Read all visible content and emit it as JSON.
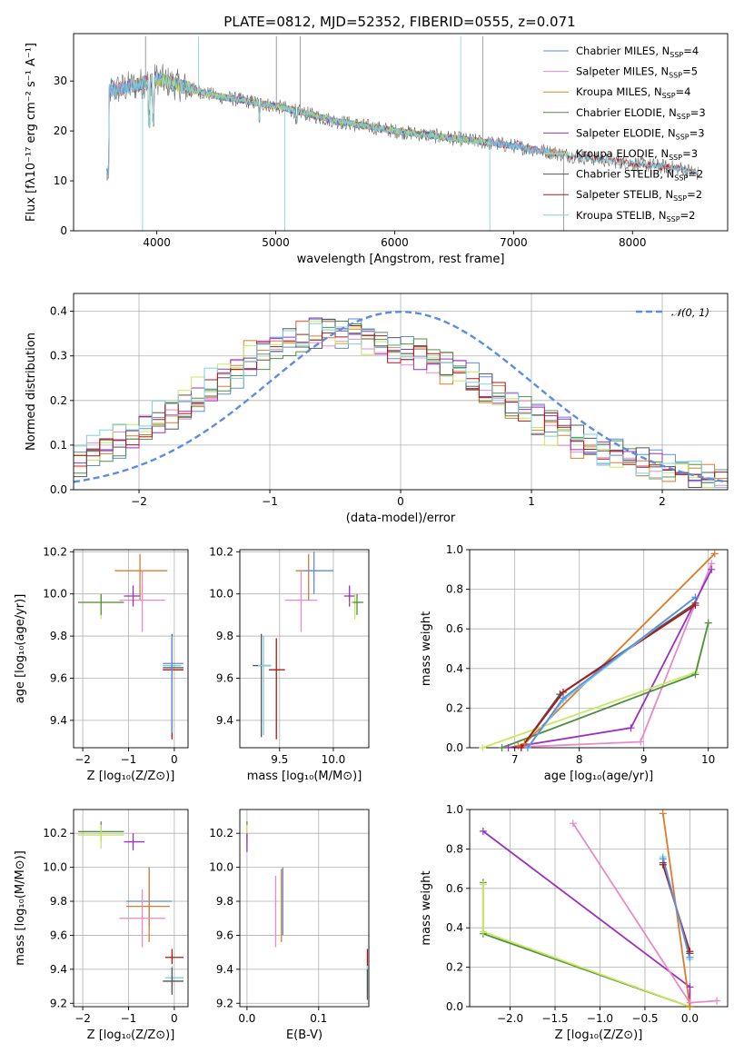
{
  "figure": {
    "title": "PLATE=0812, MJD=52352, FIBERID=0555, z=0.071"
  },
  "colors": {
    "Chabrier MILES": "#5b8ee0",
    "Salpeter MILES": "#e88ac8",
    "Kroupa MILES": "#c8902a",
    "Chabrier ELODIE": "#4f9040",
    "Salpeter ELODIE": "#9b30c0",
    "Kroupa ELODIE": "#c8e860",
    "Chabrier STELIB": "#555555",
    "Salpeter STELIB": "#b01818",
    "Kroupa STELIB": "#78d0e0",
    "orange_model": "#e07a2a",
    "normal": "#5b8ee0"
  },
  "chart_data": [
    {
      "id": "spectrum",
      "type": "line",
      "xlabel": "wavelength [Angstrom, rest frame]",
      "ylabel": "Flux [fλ10⁻¹⁷ erg cm⁻² s⁻¹ A⁻¹]",
      "xlim": [
        3300,
        8800
      ],
      "ylim": [
        0,
        39.5
      ],
      "xticks": [
        "4000",
        "5000",
        "6000",
        "7000",
        "8000"
      ],
      "yticks": [
        "0",
        "10",
        "20",
        "30"
      ],
      "xtick_values": [
        4000,
        5000,
        6000,
        7000,
        8000
      ],
      "ytick_values": [
        0,
        10,
        20,
        30
      ],
      "legend_position": "top-right",
      "legend": [
        {
          "name": "Chabrier MILES",
          "nssp": "4"
        },
        {
          "name": "Salpeter MILES",
          "nssp": "5"
        },
        {
          "name": "Kroupa MILES",
          "nssp": "4"
        },
        {
          "name": "Chabrier ELODIE",
          "nssp": "3"
        },
        {
          "name": "Salpeter ELODIE",
          "nssp": "3"
        },
        {
          "name": "Kroupa ELODIE",
          "nssp": "3"
        },
        {
          "name": "Chabrier STELIB",
          "nssp": "2"
        },
        {
          "name": "Salpeter STELIB",
          "nssp": "2"
        },
        {
          "name": "Kroupa STELIB",
          "nssp": "2"
        }
      ],
      "legend_prefix": ", N",
      "legend_sub": "SSP",
      "continuum": {
        "x": [
          3600,
          3800,
          4000,
          4200,
          4500,
          5000,
          5500,
          6000,
          6500,
          7000,
          7500,
          8000,
          8400,
          8550
        ],
        "y": [
          28,
          29,
          30.5,
          29,
          27,
          25,
          22,
          20,
          18.5,
          17,
          15,
          13.5,
          12.5,
          11.5
        ]
      },
      "spikes": [
        {
          "x": 3880,
          "y": 0
        },
        {
          "x": 3905,
          "y": 39
        },
        {
          "x": 4350,
          "y": 39
        },
        {
          "x": 5005,
          "y": 39
        },
        {
          "x": 5075,
          "y": 0
        },
        {
          "x": 5205,
          "y": 39
        },
        {
          "x": 6555,
          "y": 39
        },
        {
          "x": 6740,
          "y": 39
        },
        {
          "x": 6800,
          "y": 0
        },
        {
          "x": 7420,
          "y": 0
        }
      ]
    },
    {
      "id": "residuals",
      "type": "histogram",
      "xlabel": "(data-model)/error",
      "ylabel": "Normed distribution",
      "xlim": [
        -2.5,
        2.5
      ],
      "ylim": [
        0,
        0.44
      ],
      "xticks": [
        "−2",
        "−1",
        "0",
        "1",
        "2"
      ],
      "yticks": [
        "0.0",
        "0.1",
        "0.2",
        "0.3",
        "0.4"
      ],
      "xtick_values": [
        -2,
        -1,
        0,
        1,
        2
      ],
      "ytick_values": [
        0,
        0.1,
        0.2,
        0.3,
        0.4
      ],
      "grid": true,
      "legend_position": "top-right",
      "legend_label": "𝒩(0, 1)",
      "bin_width": 0.1,
      "envelope": {
        "x": [
          -2.5,
          -2.2,
          -1.9,
          -1.6,
          -1.3,
          -1.0,
          -0.7,
          -0.4,
          -0.1,
          0.2,
          0.5,
          0.8,
          1.1,
          1.4,
          1.7,
          2.0,
          2.3,
          2.5
        ],
        "y": [
          0.06,
          0.1,
          0.15,
          0.2,
          0.26,
          0.32,
          0.35,
          0.35,
          0.32,
          0.3,
          0.25,
          0.2,
          0.15,
          0.1,
          0.07,
          0.05,
          0.03,
          0.02
        ]
      },
      "normal": {
        "mu": 0,
        "sigma": 1
      }
    },
    {
      "id": "age-vs-Z",
      "type": "scatter",
      "xlabel": "Z [log₁₀(Z/Z⊙)]",
      "ylabel": "age  [log₁₀(age/yr)]",
      "xlim": [
        -2.2,
        0.3
      ],
      "ylim": [
        9.27,
        10.21
      ],
      "xticks": [
        "−2",
        "−1",
        "0"
      ],
      "yticks": [
        "9.4",
        "9.6",
        "9.8",
        "10.0",
        "10.2"
      ],
      "xtick_values": [
        -2,
        -1,
        0
      ],
      "ytick_values": [
        9.4,
        9.6,
        9.8,
        10.0,
        10.2
      ],
      "points": [
        {
          "model": "Kroupa ELODIE",
          "x": -1.6,
          "y": 9.96,
          "xl": -2.1,
          "xh": -1.1,
          "yl": 9.88,
          "yh": 10.0
        },
        {
          "model": "Chabrier ELODIE",
          "x": -1.6,
          "y": 9.96,
          "xl": -2.1,
          "xh": -1.1,
          "yl": 9.9,
          "yh": 10.0
        },
        {
          "model": "orange_model",
          "x": -0.75,
          "y": 10.11,
          "xl": -1.3,
          "xh": -0.15,
          "yl": 9.97,
          "yh": 10.19
        },
        {
          "model": "Salpeter MILES",
          "x": -0.7,
          "y": 9.97,
          "xl": -1.2,
          "xh": -0.2,
          "yl": 9.82,
          "yh": 10.11
        },
        {
          "model": "Salpeter ELODIE",
          "x": -0.9,
          "y": 9.99,
          "xl": -1.1,
          "xh": -0.75,
          "yl": 9.94,
          "yh": 10.04
        },
        {
          "model": "Chabrier STELIB",
          "x": -0.05,
          "y": 9.65,
          "xl": -0.25,
          "xh": 0.2,
          "yl": 9.32,
          "yh": 9.81
        },
        {
          "model": "Kroupa STELIB",
          "x": -0.05,
          "y": 9.66,
          "xl": -0.25,
          "xh": 0.15,
          "yl": 9.33,
          "yh": 9.8
        },
        {
          "model": "Salpeter STELIB",
          "x": -0.05,
          "y": 9.64,
          "xl": -0.25,
          "xh": 0.2,
          "yl": 9.31,
          "yh": 9.79
        },
        {
          "model": "Chabrier MILES",
          "x": -0.05,
          "y": 9.67,
          "xl": -0.25,
          "xh": 0.2,
          "yl": 9.34,
          "yh": 9.8
        }
      ]
    },
    {
      "id": "age-vs-mass",
      "type": "scatter",
      "xlabel": "mass [log₁₀(M/M⊙)]",
      "ylabel": "",
      "xlim": [
        9.13,
        10.33
      ],
      "ylim": [
        9.27,
        10.21
      ],
      "xticks": [
        "9.5",
        "10.0"
      ],
      "yticks": [
        "9.4",
        "9.6",
        "9.8",
        "10.0",
        "10.2"
      ],
      "xtick_values": [
        9.5,
        10.0
      ],
      "ytick_values": [
        9.4,
        9.6,
        9.8,
        10.0,
        10.2
      ],
      "points": [
        {
          "model": "Chabrier STELIB",
          "x": 9.33,
          "y": 9.66,
          "xl": 9.25,
          "xh": 9.42,
          "yl": 9.32,
          "yh": 9.81
        },
        {
          "model": "Kroupa STELIB",
          "x": 9.35,
          "y": 9.66,
          "xl": 9.3,
          "xh": 9.42,
          "yl": 9.33,
          "yh": 9.8
        },
        {
          "model": "Salpeter STELIB",
          "x": 9.47,
          "y": 9.64,
          "xl": 9.4,
          "xh": 9.55,
          "yl": 9.31,
          "yh": 9.79
        },
        {
          "model": "Salpeter MILES",
          "x": 9.7,
          "y": 9.97,
          "xl": 9.55,
          "xh": 9.85,
          "yl": 9.82,
          "yh": 10.11
        },
        {
          "model": "orange_model",
          "x": 9.77,
          "y": 10.11,
          "xl": 9.65,
          "xh": 9.88,
          "yl": 9.97,
          "yh": 10.19
        },
        {
          "model": "Chabrier MILES",
          "x": 9.82,
          "y": 10.11,
          "xl": 9.72,
          "xh": 10.0,
          "yl": 10.0,
          "yh": 10.2
        },
        {
          "model": "Salpeter ELODIE",
          "x": 10.15,
          "y": 9.99,
          "xl": 10.1,
          "xh": 10.2,
          "yl": 9.94,
          "yh": 10.04
        },
        {
          "model": "Kroupa ELODIE",
          "x": 10.2,
          "y": 9.96,
          "xl": 10.15,
          "xh": 10.25,
          "yl": 9.88,
          "yh": 10.0
        },
        {
          "model": "Chabrier ELODIE",
          "x": 10.22,
          "y": 9.96,
          "xl": 10.18,
          "xh": 10.28,
          "yl": 9.9,
          "yh": 10.0
        }
      ]
    },
    {
      "id": "mass-weight-vs-age",
      "type": "line",
      "xlabel": "age  [log₁₀(age/yr)]",
      "ylabel": "mass weight",
      "xlim": [
        6.3,
        10.3
      ],
      "ylim": [
        0,
        1
      ],
      "xticks": [
        "7",
        "8",
        "9",
        "10"
      ],
      "yticks": [
        "0.0",
        "0.2",
        "0.4",
        "0.6",
        "0.8",
        "1.0"
      ],
      "xtick_values": [
        7,
        8,
        9,
        10
      ],
      "ytick_values": [
        0,
        0.2,
        0.4,
        0.6,
        0.8,
        1.0
      ],
      "grid": true,
      "series": [
        {
          "model": "orange_model",
          "points": [
            [
              7.05,
              0.01
            ],
            [
              7.15,
              0.02
            ],
            [
              10.1,
              0.98
            ]
          ]
        },
        {
          "model": "Salpeter MILES",
          "points": [
            [
              6.8,
              0.0
            ],
            [
              8.95,
              0.03
            ],
            [
              9.8,
              0.73
            ],
            [
              10.05,
              0.93
            ]
          ]
        },
        {
          "model": "Salpeter ELODIE",
          "points": [
            [
              6.9,
              0.0
            ],
            [
              8.8,
              0.1
            ],
            [
              10.05,
              0.9
            ]
          ]
        },
        {
          "model": "Kroupa ELODIE",
          "points": [
            [
              6.5,
              0.0
            ],
            [
              9.8,
              0.38
            ],
            [
              10.0,
              0.63
            ]
          ]
        },
        {
          "model": "Chabrier ELODIE",
          "points": [
            [
              6.8,
              0.0
            ],
            [
              9.8,
              0.37
            ],
            [
              10.0,
              0.63
            ]
          ]
        },
        {
          "model": "Chabrier STELIB",
          "points": [
            [
              7.1,
              0.0
            ],
            [
              7.7,
              0.27
            ],
            [
              9.8,
              0.73
            ]
          ]
        },
        {
          "model": "Salpeter STELIB",
          "points": [
            [
              7.1,
              0.0
            ],
            [
              7.75,
              0.28
            ],
            [
              9.8,
              0.72
            ]
          ]
        },
        {
          "model": "Kroupa STELIB",
          "points": [
            [
              7.2,
              0.0
            ],
            [
              7.75,
              0.24
            ],
            [
              9.8,
              0.76
            ]
          ]
        },
        {
          "model": "Chabrier MILES",
          "points": [
            [
              7.2,
              0.0
            ],
            [
              7.75,
              0.25
            ],
            [
              9.8,
              0.76
            ]
          ]
        }
      ]
    },
    {
      "id": "mass-vs-Z",
      "type": "scatter",
      "xlabel": "Z [log₁₀(Z/Z⊙)]",
      "ylabel": "mass [log₁₀(M/M⊙)]",
      "xlim": [
        -2.2,
        0.3
      ],
      "ylim": [
        9.18,
        10.34
      ],
      "xticks": [
        "−2",
        "−1",
        "0"
      ],
      "yticks": [
        "9.2",
        "9.4",
        "9.6",
        "9.8",
        "10.0",
        "10.2"
      ],
      "xtick_values": [
        -2,
        -1,
        0
      ],
      "ytick_values": [
        9.2,
        9.4,
        9.6,
        9.8,
        10.0,
        10.2
      ],
      "points": [
        {
          "model": "Chabrier ELODIE",
          "x": -1.6,
          "y": 10.21,
          "xl": -2.1,
          "xh": -1.1,
          "yl": 10.15,
          "yh": 10.27
        },
        {
          "model": "Kroupa ELODIE",
          "x": -1.6,
          "y": 10.19,
          "xl": -2.1,
          "xh": -1.1,
          "yl": 10.11,
          "yh": 10.25
        },
        {
          "model": "Salpeter ELODIE",
          "x": -0.9,
          "y": 10.15,
          "xl": -1.1,
          "xh": -0.65,
          "yl": 10.1,
          "yh": 10.2
        },
        {
          "model": "Chabrier MILES",
          "x": -0.55,
          "y": 9.8,
          "xl": -1.05,
          "xh": -0.05,
          "yl": 9.65,
          "yh": 10.0
        },
        {
          "model": "orange_model",
          "x": -0.55,
          "y": 9.77,
          "xl": -1.05,
          "xh": -0.1,
          "yl": 9.56,
          "yh": 9.99
        },
        {
          "model": "Salpeter MILES",
          "x": -0.7,
          "y": 9.7,
          "xl": -1.2,
          "xh": -0.2,
          "yl": 9.53,
          "yh": 9.87
        },
        {
          "model": "Salpeter STELIB",
          "x": -0.05,
          "y": 9.47,
          "xl": -0.2,
          "xh": 0.2,
          "yl": 9.43,
          "yh": 9.52
        },
        {
          "model": "Kroupa STELIB",
          "x": -0.05,
          "y": 9.35,
          "xl": -0.2,
          "xh": 0.2,
          "yl": 9.27,
          "yh": 9.42
        },
        {
          "model": "Chabrier STELIB",
          "x": -0.05,
          "y": 9.33,
          "xl": -0.25,
          "xh": 0.2,
          "yl": 9.25,
          "yh": 9.41
        }
      ]
    },
    {
      "id": "mass-vs-EBV",
      "type": "scatter",
      "xlabel": "E(B-V)",
      "ylabel": "",
      "xlim": [
        -0.01,
        0.17
      ],
      "ylim": [
        9.18,
        10.34
      ],
      "xticks": [
        "0.0",
        "0.1"
      ],
      "yticks": [
        "9.2",
        "9.4",
        "9.6",
        "9.8",
        "10.0",
        "10.2"
      ],
      "xtick_values": [
        0.0,
        0.1
      ],
      "ytick_values": [
        9.2,
        9.4,
        9.6,
        9.8,
        10.0,
        10.2
      ],
      "points": [
        {
          "model": "Chabrier ELODIE",
          "x": 0.0,
          "y": 10.21,
          "yl": 10.15,
          "yh": 10.27
        },
        {
          "model": "Kroupa ELODIE",
          "x": 0.0,
          "y": 10.19,
          "yl": 10.11,
          "yh": 10.25
        },
        {
          "model": "Salpeter ELODIE",
          "x": 0.0,
          "y": 10.15,
          "yl": 10.09,
          "yh": 10.2
        },
        {
          "model": "Salpeter MILES",
          "x": 0.04,
          "y": 9.7,
          "yl": 9.53,
          "yh": 9.95
        },
        {
          "model": "orange_model",
          "x": 0.048,
          "y": 9.77,
          "yl": 9.56,
          "yh": 9.99
        },
        {
          "model": "Chabrier MILES",
          "x": 0.05,
          "y": 9.8,
          "yl": 9.6,
          "yh": 10.0
        },
        {
          "model": "Salpeter STELIB",
          "x": 0.168,
          "y": 9.47,
          "yl": 9.42,
          "yh": 9.52
        },
        {
          "model": "Kroupa STELIB",
          "x": 0.168,
          "y": 9.35,
          "yl": 9.27,
          "yh": 9.42
        },
        {
          "model": "Chabrier STELIB",
          "x": 0.168,
          "y": 9.32,
          "yl": 9.22,
          "yh": 9.4
        }
      ]
    },
    {
      "id": "mass-weight-vs-Z",
      "type": "line",
      "xlabel": "Z [log₁₀(Z/Z⊙)]",
      "ylabel": "mass weight",
      "xlim": [
        -2.45,
        0.42
      ],
      "ylim": [
        0,
        1
      ],
      "xticks": [
        "−2.0",
        "−1.5",
        "−1.0",
        "−0.5",
        "0.0"
      ],
      "yticks": [
        "0.0",
        "0.2",
        "0.4",
        "0.6",
        "0.8",
        "1.0"
      ],
      "xtick_values": [
        -2.0,
        -1.5,
        -1.0,
        -0.5,
        0.0
      ],
      "ytick_values": [
        0,
        0.2,
        0.4,
        0.6,
        0.8,
        1.0
      ],
      "grid": true,
      "series": [
        {
          "model": "Salpeter ELODIE",
          "points": [
            [
              -2.3,
              0.89
            ],
            [
              0.0,
              0.1
            ],
            [
              0.0,
              0.0
            ]
          ]
        },
        {
          "model": "Salpeter MILES",
          "points": [
            [
              -1.3,
              0.93
            ],
            [
              0.0,
              0.02
            ],
            [
              0.3,
              0.03
            ]
          ]
        },
        {
          "model": "Chabrier ELODIE",
          "points": [
            [
              -2.3,
              0.63
            ],
            [
              -2.3,
              0.37
            ],
            [
              0.0,
              0.0
            ]
          ]
        },
        {
          "model": "Kroupa ELODIE",
          "points": [
            [
              -2.3,
              0.62
            ],
            [
              -2.3,
              0.38
            ],
            [
              0.0,
              0.0
            ]
          ]
        },
        {
          "model": "orange_model",
          "points": [
            [
              -0.3,
              0.98
            ],
            [
              0.0,
              0.0
            ]
          ]
        },
        {
          "model": "Chabrier STELIB",
          "points": [
            [
              -0.3,
              0.73
            ],
            [
              0.0,
              0.27
            ]
          ]
        },
        {
          "model": "Salpeter STELIB",
          "points": [
            [
              -0.3,
              0.72
            ],
            [
              0.0,
              0.28
            ]
          ]
        },
        {
          "model": "Kroupa STELIB",
          "points": [
            [
              -0.3,
              0.76
            ],
            [
              0.0,
              0.24
            ]
          ]
        },
        {
          "model": "Chabrier MILES",
          "points": [
            [
              -0.3,
              0.75
            ],
            [
              0.0,
              0.25
            ]
          ]
        }
      ]
    }
  ]
}
